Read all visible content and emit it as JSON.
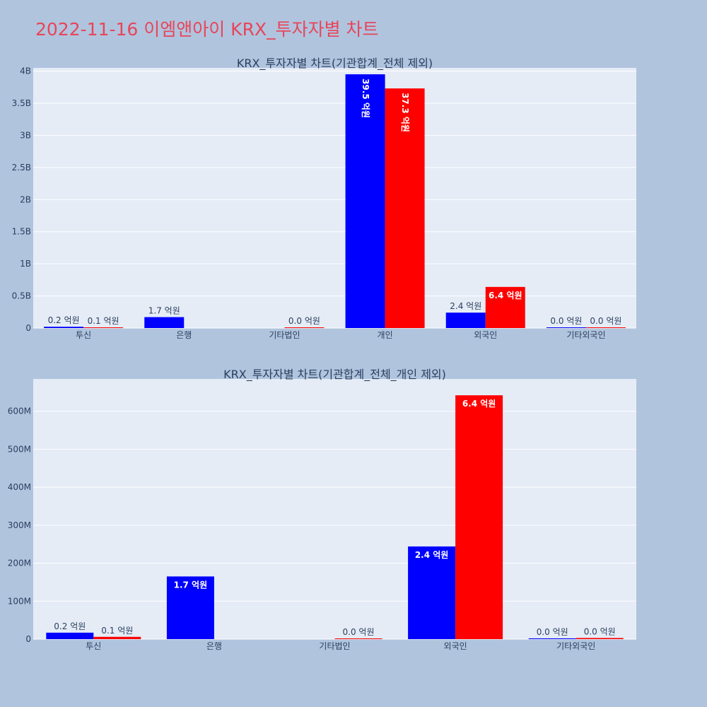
{
  "title": "2022-11-16 이엠앤아이 KRX_투자자별 차트",
  "colors": {
    "series_a": "#0000ff",
    "series_b": "#ff0000",
    "plot_bg": "#e5ecf6",
    "page_bg": "#b0c4de",
    "title": "#e8455a"
  },
  "chart_data": [
    {
      "type": "bar",
      "title": "KRX_투자자별 차트(기관합계_전체 제외)",
      "categories": [
        "투신",
        "은행",
        "기타법인",
        "개인",
        "외국인",
        "기타외국인"
      ],
      "ylim": [
        0,
        4050000000
      ],
      "yticks": [
        {
          "value": 0,
          "label": "0"
        },
        {
          "value": 500000000,
          "label": "0.5B"
        },
        {
          "value": 1000000000,
          "label": "1B"
        },
        {
          "value": 1500000000,
          "label": "1.5B"
        },
        {
          "value": 2000000000,
          "label": "2B"
        },
        {
          "value": 2500000000,
          "label": "2.5B"
        },
        {
          "value": 3000000000,
          "label": "3B"
        },
        {
          "value": 3500000000,
          "label": "3.5B"
        },
        {
          "value": 4000000000,
          "label": "4B"
        }
      ],
      "series": [
        {
          "values": [
            20000000,
            170000000,
            null,
            3950000000,
            240000000,
            1000000
          ],
          "labels": [
            "0.2 억원",
            "1.7 억원",
            "",
            "39.5 억원",
            "2.4 억원",
            "0.0 억원"
          ]
        },
        {
          "values": [
            10000000,
            null,
            1000000,
            3730000000,
            640000000,
            1000000
          ],
          "labels": [
            "0.1 억원",
            "",
            "0.0 억원",
            "37.3 억원",
            "6.4 억원",
            "0.0 억원"
          ]
        }
      ]
    },
    {
      "type": "bar",
      "title": "KRX_투자자별 차트(기관합계_전체_개인 제외)",
      "categories": [
        "투신",
        "은행",
        "기타법인",
        "외국인",
        "기타외국인"
      ],
      "ylim": [
        0,
        685000000
      ],
      "yticks": [
        {
          "value": 0,
          "label": "0"
        },
        {
          "value": 100000000,
          "label": "100M"
        },
        {
          "value": 200000000,
          "label": "200M"
        },
        {
          "value": 300000000,
          "label": "300M"
        },
        {
          "value": 400000000,
          "label": "400M"
        },
        {
          "value": 500000000,
          "label": "500M"
        },
        {
          "value": 600000000,
          "label": "600M"
        }
      ],
      "series": [
        {
          "values": [
            17000000,
            165000000,
            null,
            244000000,
            2000000
          ],
          "labels": [
            "0.2 억원",
            "1.7 억원",
            "",
            "2.4 억원",
            "0.0 억원"
          ]
        },
        {
          "values": [
            6000000,
            null,
            1000000,
            642000000,
            3000000
          ],
          "labels": [
            "0.1 억원",
            "",
            "0.0 억원",
            "6.4 억원",
            "0.0 억원"
          ]
        }
      ]
    }
  ]
}
